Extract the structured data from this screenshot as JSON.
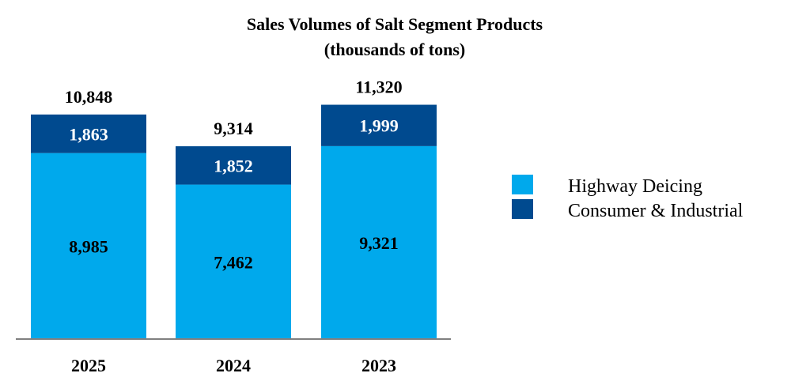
{
  "chart_data": {
    "type": "bar",
    "stacked": true,
    "title": "Sales Volumes of Salt Segment Products",
    "subtitle": "(thousands of tons)",
    "categories": [
      "2025",
      "2024",
      "2023"
    ],
    "series": [
      {
        "name": "Highway Deicing",
        "values": [
          8985,
          7462,
          9321
        ],
        "labels": [
          "8,985",
          "7,462",
          "9,321"
        ],
        "color": "#00a9ec"
      },
      {
        "name": "Consumer & Industrial",
        "values": [
          1863,
          1852,
          1999
        ],
        "labels": [
          "1,863",
          "1,852",
          "1,999"
        ],
        "color": "#004a8f"
      }
    ],
    "totals": [
      10848,
      9314,
      11320
    ],
    "total_labels": [
      "10,848",
      "9,314",
      "11,320"
    ],
    "ylim": [
      0,
      12000
    ],
    "xlabel": "",
    "ylabel": "",
    "grid": false,
    "legend_position": "right"
  },
  "colors": {
    "highway": "#00a9ec",
    "consumer": "#004a8f",
    "axis": "#808080",
    "text": "#000000",
    "segment_label_light": "#ffffff"
  }
}
